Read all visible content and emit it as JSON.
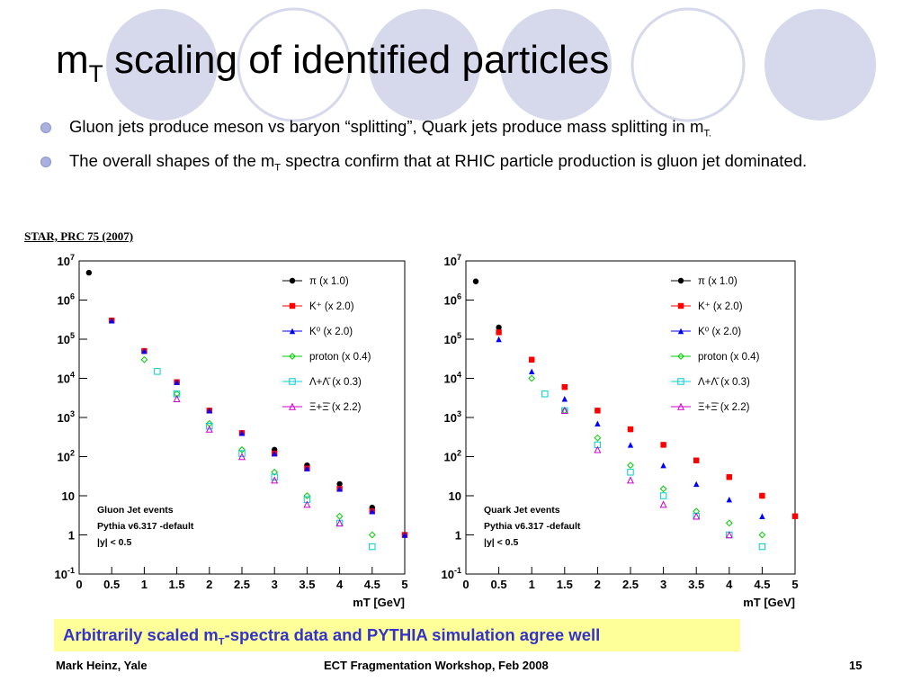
{
  "title": {
    "main": "m",
    "sub": "T",
    "rest": " scaling of identified particles"
  },
  "bullets": [
    {
      "parts": [
        "Gluon jets produce meson vs baryon “splitting”, Quark jets produce mass splitting in m",
        "T."
      ]
    },
    {
      "a": "The overall shapes of the m",
      "sub": "T",
      "b": " spectra confirm that at RHIC particle production is gluon jet dominated."
    }
  ],
  "reference": "STAR, PRC 75 (2007)",
  "banner": {
    "a": "Arbitrarily scaled m",
    "sub": "T",
    "b": "-spectra data and PYTHIA simulation agree well"
  },
  "footer": {
    "left": "Mark Heinz, Yale",
    "center": "ECT Fragmentation Workshop, Feb 2008",
    "right": "15"
  },
  "colors": {
    "bullet": "#aab0e0",
    "banner_bg": "#ffff99",
    "banner_text": "#3333cc",
    "deco_circle": "#d6d8ec"
  },
  "chart_data": [
    {
      "type": "scatter",
      "yscale": "log",
      "xlabel": "m_T [GeV]",
      "xlim": [
        0,
        5
      ],
      "ylim": [
        0.1,
        10000000
      ],
      "xticks": [
        "0",
        "0.5",
        "1",
        "1.5",
        "2",
        "2.5",
        "3",
        "3.5",
        "4",
        "4.5",
        "5"
      ],
      "yticks": [
        "10^-1",
        "1",
        "10",
        "10^2",
        "10^3",
        "10^4",
        "10^5",
        "10^6",
        "10^7"
      ],
      "annotation": [
        "Gluon Jet events",
        "Pythia v6.317 -default",
        "|y| < 0.5"
      ],
      "legend_position": "top-right",
      "series": [
        {
          "name": "π (x 1.0)",
          "color": "#000000",
          "marker": "circle-filled",
          "x": [
            0.15,
            0.5,
            1.0,
            1.5,
            2.0,
            2.5,
            3.0,
            3.5,
            4.0,
            4.5,
            5.0
          ],
          "y": [
            5000000,
            300000,
            50000,
            8000,
            1500,
            400,
            150,
            60,
            20,
            5,
            1
          ]
        },
        {
          "name": "K⁺ (x 2.0)",
          "color": "#ff0000",
          "marker": "square-filled",
          "x": [
            0.5,
            1.0,
            1.5,
            2.0,
            2.5,
            3.0,
            3.5,
            4.0,
            4.5,
            5.0
          ],
          "y": [
            300000,
            50000,
            8000,
            1500,
            400,
            120,
            50,
            15,
            4,
            1
          ]
        },
        {
          "name": "K⁰ (x 2.0)",
          "color": "#0000ff",
          "marker": "triangle-filled",
          "x": [
            0.5,
            1.0,
            1.5,
            2.0,
            2.5,
            3.0,
            3.5,
            4.0,
            4.5,
            5.0
          ],
          "y": [
            300000,
            50000,
            8000,
            1500,
            400,
            120,
            50,
            15,
            4,
            1
          ]
        },
        {
          "name": "proton (x 0.4)",
          "color": "#00cc00",
          "marker": "diamond-open",
          "x": [
            1.0,
            1.5,
            2.0,
            2.5,
            3.0,
            3.5,
            4.0,
            4.5
          ],
          "y": [
            30000,
            4000,
            700,
            150,
            40,
            10,
            3,
            1
          ]
        },
        {
          "name": "Λ+Λ̄ (x 0.3)",
          "color": "#00cccc",
          "marker": "square-open",
          "x": [
            1.2,
            1.5,
            2.0,
            2.5,
            3.0,
            3.5,
            4.0,
            4.5
          ],
          "y": [
            15000,
            4000,
            600,
            120,
            30,
            8,
            2,
            0.5
          ]
        },
        {
          "name": "Ξ+Ξ̄ (x 2.2)",
          "color": "#cc00cc",
          "marker": "triangle-open",
          "x": [
            1.5,
            2.0,
            2.5,
            3.0,
            3.5,
            4.0
          ],
          "y": [
            3000,
            500,
            100,
            25,
            6,
            2
          ]
        }
      ]
    },
    {
      "type": "scatter",
      "yscale": "log",
      "xlabel": "m_T [GeV]",
      "xlim": [
        0,
        5
      ],
      "ylim": [
        0.1,
        10000000
      ],
      "xticks": [
        "0",
        "0.5",
        "1",
        "1.5",
        "2",
        "2.5",
        "3",
        "3.5",
        "4",
        "4.5",
        "5"
      ],
      "yticks": [
        "10^-1",
        "1",
        "10",
        "10^2",
        "10^3",
        "10^4",
        "10^5",
        "10^6",
        "10^7"
      ],
      "annotation": [
        "Quark Jet events",
        "Pythia v6.317 -default",
        "|y| < 0.5"
      ],
      "legend_position": "top-right",
      "series": [
        {
          "name": "π (x 1.0)",
          "color": "#000000",
          "marker": "circle-filled",
          "x": [
            0.15,
            0.5,
            1.0,
            1.5,
            2.0,
            2.5,
            3.0,
            3.5,
            4.0,
            4.5,
            5.0
          ],
          "y": [
            3000000,
            200000,
            30000,
            6000,
            1500,
            500,
            200,
            80,
            30,
            10,
            3
          ]
        },
        {
          "name": "K⁺ (x 2.0)",
          "color": "#ff0000",
          "marker": "square-filled",
          "x": [
            0.5,
            1.0,
            1.5,
            2.0,
            2.5,
            3.0,
            3.5,
            4.0,
            4.5,
            5.0
          ],
          "y": [
            150000,
            30000,
            6000,
            1500,
            500,
            200,
            80,
            30,
            10,
            3
          ]
        },
        {
          "name": "K⁰ (x 2.0)",
          "color": "#0000ff",
          "marker": "triangle-filled",
          "x": [
            0.5,
            1.0,
            1.5,
            2.0,
            2.5,
            3.0,
            3.5,
            4.0,
            4.5
          ],
          "y": [
            100000,
            15000,
            3000,
            700,
            200,
            60,
            20,
            8,
            3
          ]
        },
        {
          "name": "proton (x 0.4)",
          "color": "#00cc00",
          "marker": "diamond-open",
          "x": [
            1.0,
            1.5,
            2.0,
            2.5,
            3.0,
            3.5,
            4.0,
            4.5
          ],
          "y": [
            10000,
            1500,
            300,
            60,
            15,
            4,
            2,
            1
          ]
        },
        {
          "name": "Λ+Λ̄ (x 0.3)",
          "color": "#00cccc",
          "marker": "square-open",
          "x": [
            1.2,
            1.5,
            2.0,
            2.5,
            3.0,
            3.5,
            4.0,
            4.5
          ],
          "y": [
            4000,
            1500,
            200,
            40,
            10,
            3,
            1,
            0.5
          ]
        },
        {
          "name": "Ξ+Ξ̄ (x 2.2)",
          "color": "#cc00cc",
          "marker": "triangle-open",
          "x": [
            1.5,
            2.0,
            2.5,
            3.0,
            3.5,
            4.0
          ],
          "y": [
            1500,
            150,
            25,
            6,
            3,
            1
          ]
        }
      ]
    }
  ]
}
